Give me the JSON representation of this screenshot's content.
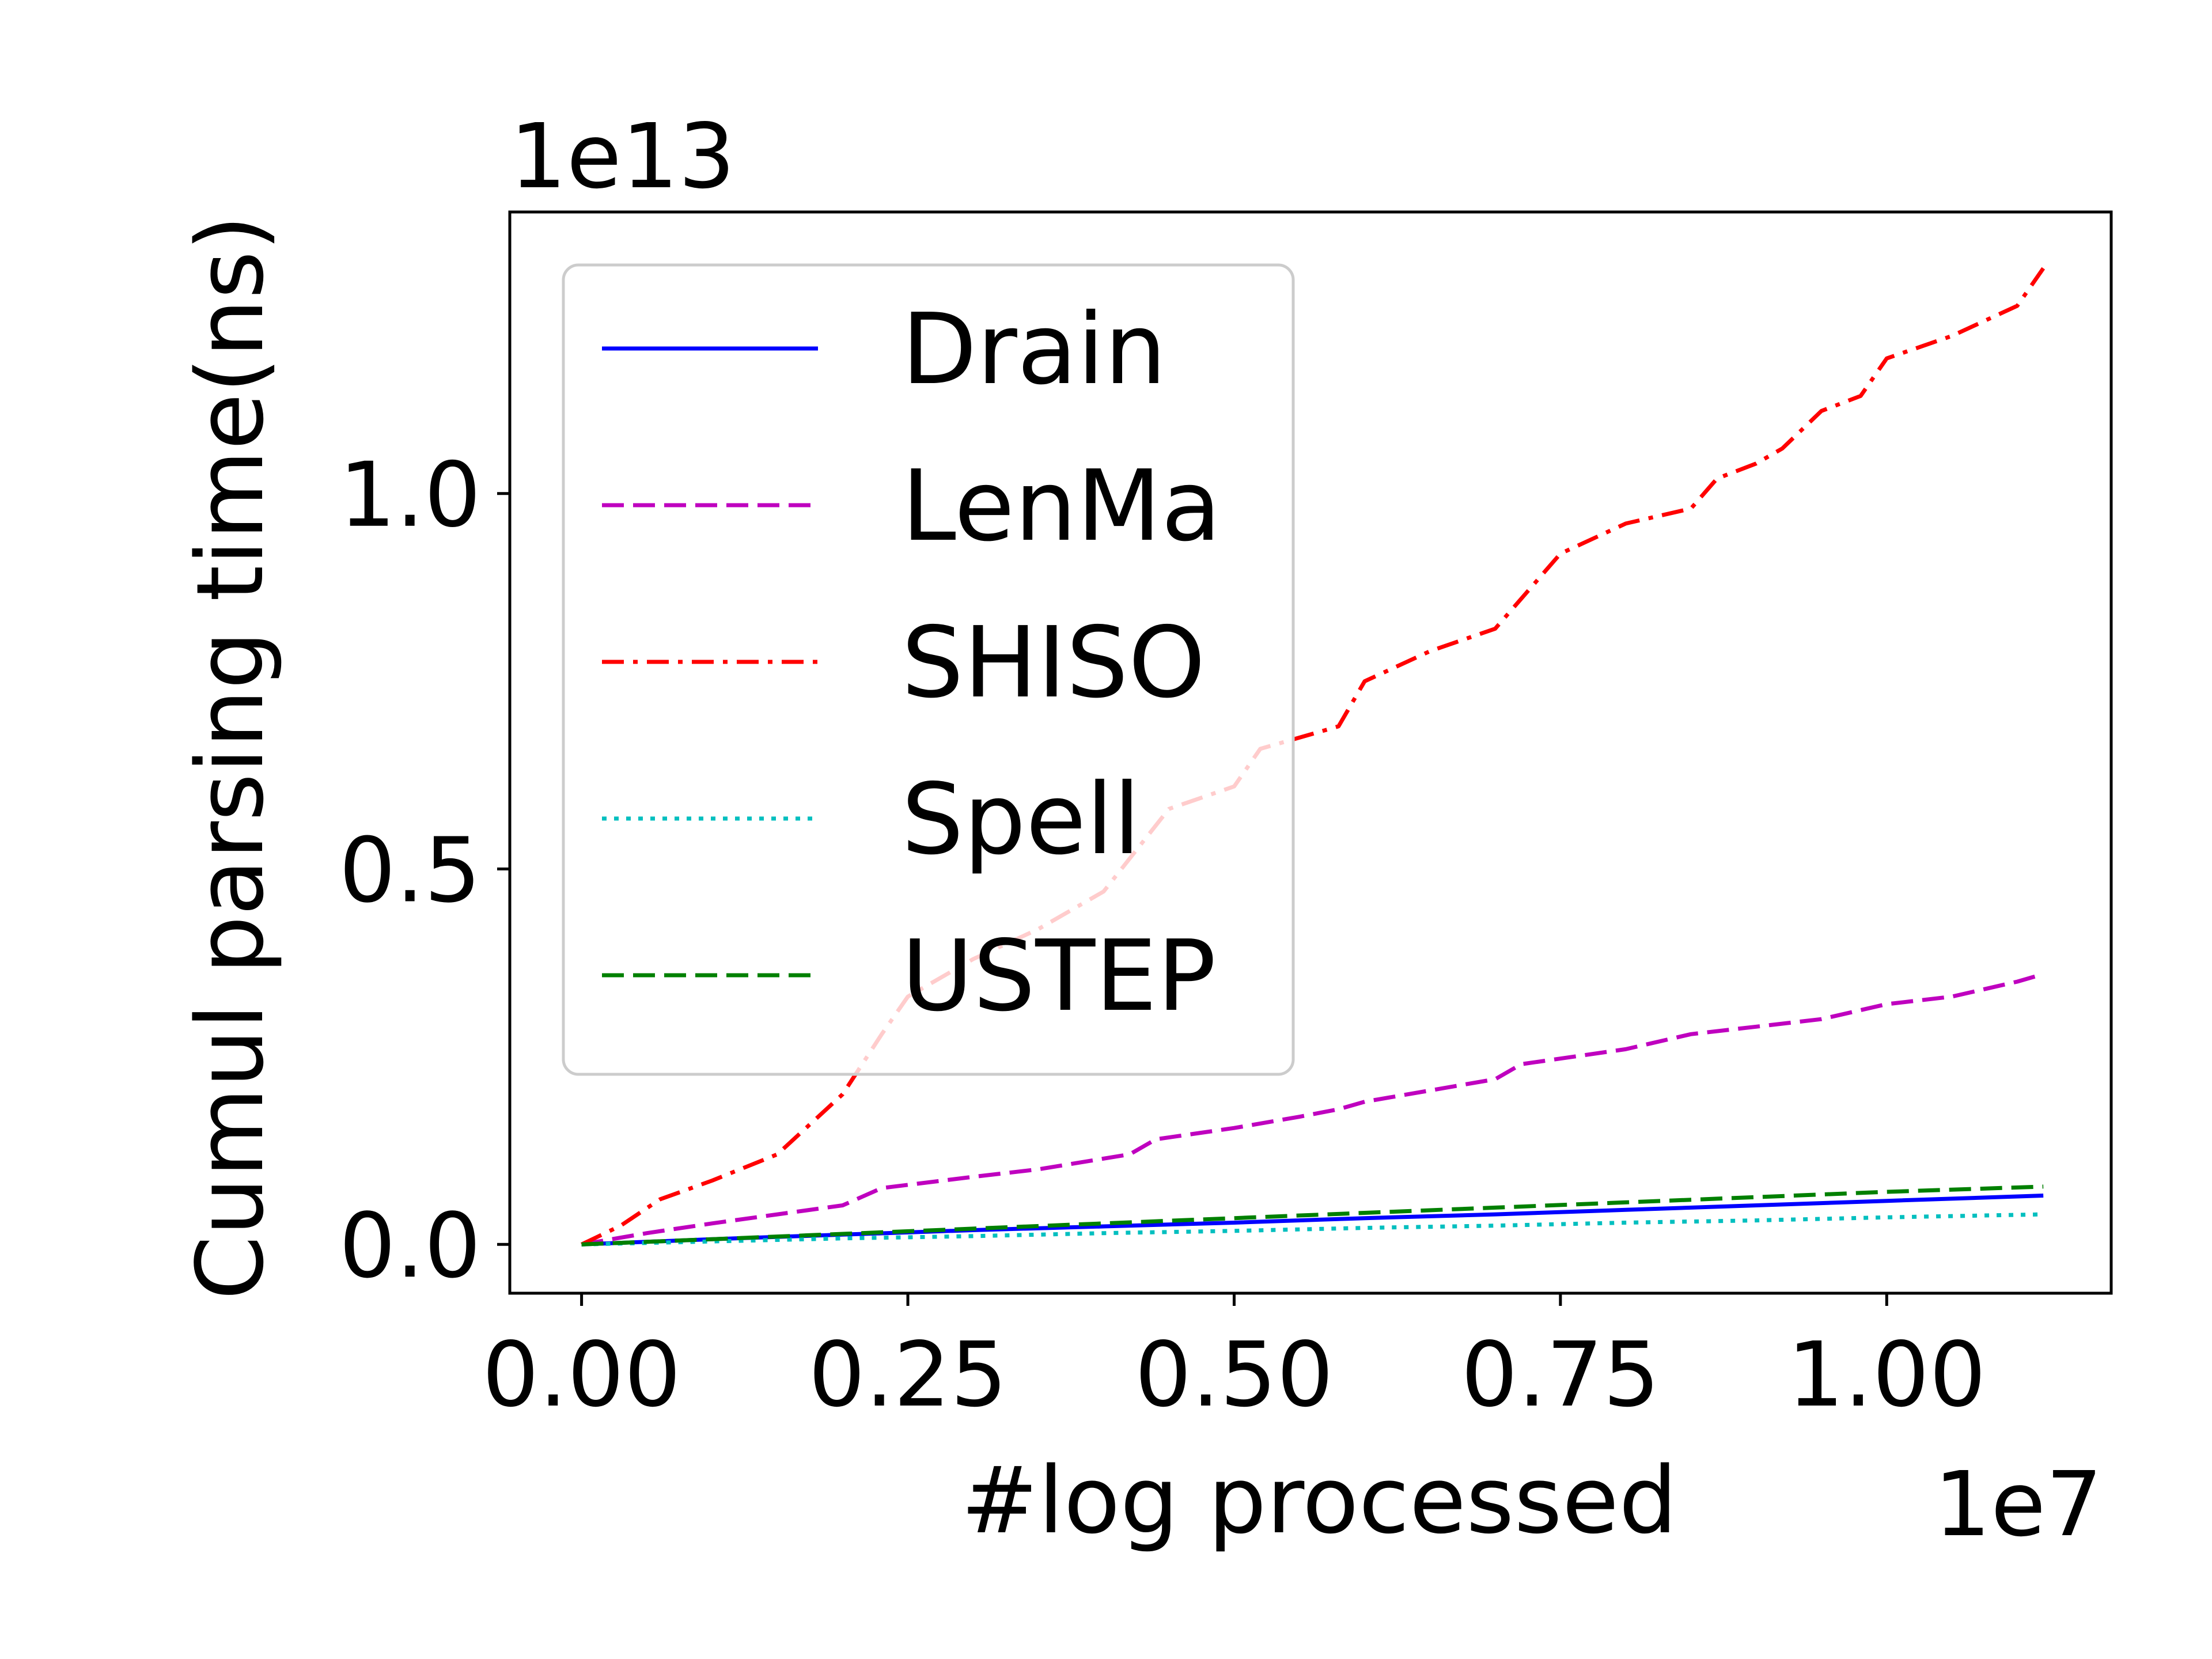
{
  "chart_data": {
    "type": "line",
    "xlabel": "#log processed",
    "ylabel": "Cumul parsing time(ns)",
    "x_offset_label": "1e7",
    "y_offset_label": "1e13",
    "xlim": [
      -0.055,
      1.172
    ],
    "ylim": [
      -0.065,
      1.375
    ],
    "x_ticks": [
      0.0,
      0.25,
      0.5,
      0.75,
      1.0
    ],
    "x_tick_labels": [
      "0.00",
      "0.25",
      "0.50",
      "0.75",
      "1.00"
    ],
    "y_ticks": [
      0.0,
      0.5,
      1.0
    ],
    "y_tick_labels": [
      "0.0",
      "0.5",
      "1.0"
    ],
    "grid": false,
    "legend_position": "top-left",
    "series": [
      {
        "name": "Drain",
        "color": "#0000ff",
        "style": "solid",
        "x": [
          0,
          0.1,
          0.2,
          0.3,
          0.4,
          0.5,
          0.6,
          0.7,
          0.8,
          0.9,
          1.0,
          1.12
        ],
        "y": [
          0,
          0.007,
          0.013,
          0.019,
          0.024,
          0.029,
          0.035,
          0.04,
          0.046,
          0.052,
          0.058,
          0.065
        ]
      },
      {
        "name": "LenMa",
        "color": "#bf00bf",
        "style": "dashed",
        "x": [
          0,
          0.05,
          0.1,
          0.15,
          0.2,
          0.23,
          0.3,
          0.35,
          0.42,
          0.44,
          0.5,
          0.55,
          0.58,
          0.6,
          0.7,
          0.72,
          0.8,
          0.85,
          0.9,
          0.95,
          1.0,
          1.05,
          1.1,
          1.12
        ],
        "y": [
          0,
          0.015,
          0.028,
          0.04,
          0.052,
          0.075,
          0.09,
          0.1,
          0.12,
          0.14,
          0.155,
          0.17,
          0.18,
          0.19,
          0.22,
          0.24,
          0.26,
          0.28,
          0.29,
          0.3,
          0.32,
          0.33,
          0.35,
          0.36
        ]
      },
      {
        "name": "SHISO",
        "color": "#ff0000",
        "style": "dashdot",
        "x": [
          0,
          0.03,
          0.06,
          0.1,
          0.15,
          0.2,
          0.23,
          0.25,
          0.3,
          0.35,
          0.4,
          0.45,
          0.5,
          0.52,
          0.58,
          0.6,
          0.65,
          0.7,
          0.75,
          0.8,
          0.85,
          0.87,
          0.9,
          0.92,
          0.95,
          0.98,
          1.0,
          1.05,
          1.1,
          1.12
        ],
        "y": [
          0,
          0.025,
          0.06,
          0.085,
          0.12,
          0.2,
          0.28,
          0.33,
          0.38,
          0.42,
          0.47,
          0.58,
          0.61,
          0.66,
          0.69,
          0.75,
          0.79,
          0.82,
          0.92,
          0.96,
          0.98,
          1.02,
          1.04,
          1.06,
          1.11,
          1.13,
          1.18,
          1.21,
          1.25,
          1.3
        ]
      },
      {
        "name": "Spell",
        "color": "#00bfbf",
        "style": "dotted",
        "x": [
          0,
          0.1,
          0.2,
          0.3,
          0.4,
          0.5,
          0.6,
          0.7,
          0.8,
          0.9,
          1.0,
          1.12
        ],
        "y": [
          0,
          0.004,
          0.008,
          0.011,
          0.015,
          0.018,
          0.022,
          0.025,
          0.029,
          0.032,
          0.036,
          0.04
        ]
      },
      {
        "name": "USTEP",
        "color": "#008000",
        "style": "dashed",
        "x": [
          0,
          0.1,
          0.2,
          0.3,
          0.4,
          0.5,
          0.6,
          0.7,
          0.8,
          0.9,
          1.0,
          1.12
        ],
        "y": [
          0,
          0.007,
          0.014,
          0.021,
          0.028,
          0.035,
          0.042,
          0.049,
          0.056,
          0.063,
          0.07,
          0.077
        ]
      }
    ]
  }
}
